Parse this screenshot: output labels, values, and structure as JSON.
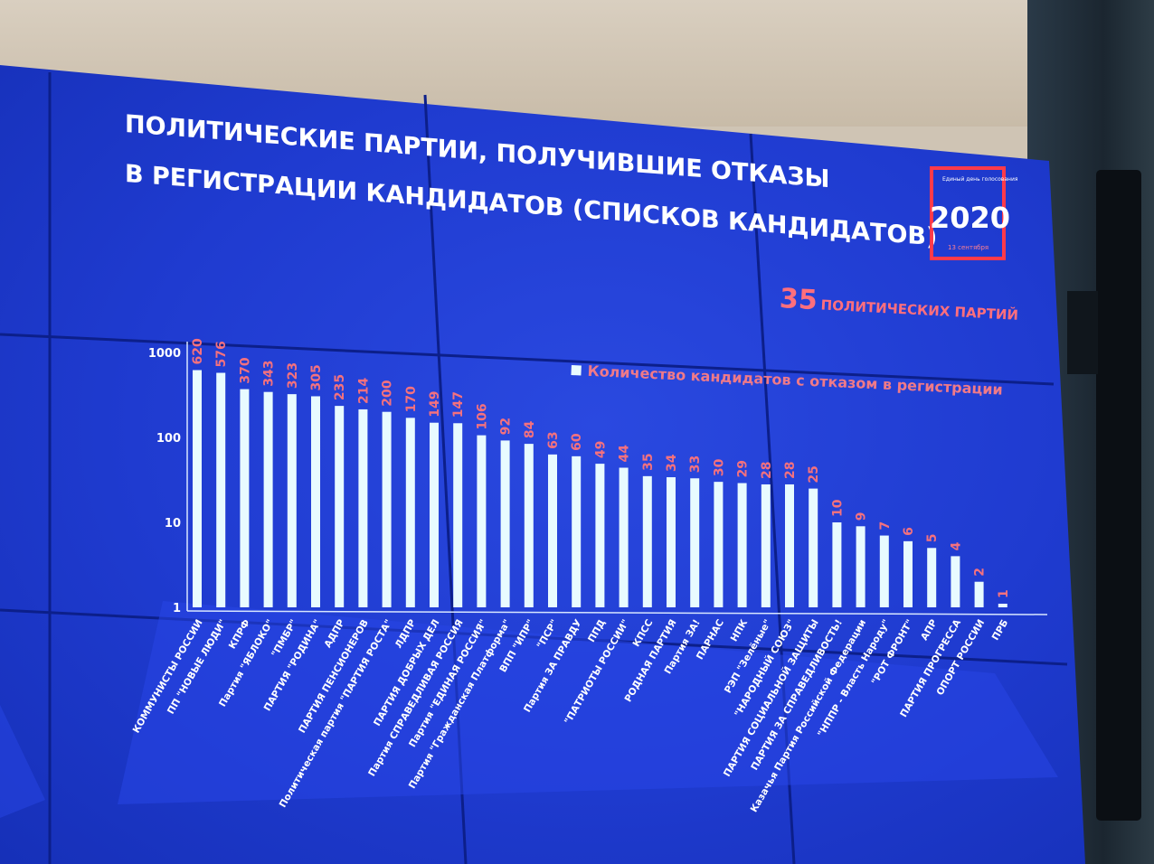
{
  "slide": {
    "title_line1": "ПОЛИТИЧЕСКИЕ ПАРТИИ, ПОЛУЧИВШИЕ ОТКАЗЫ",
    "title_line2": "В РЕГИСТРАЦИИ КАНДИДАТОВ (СПИСКОВ КАНДИДАТОВ)",
    "logo_small_text": "Единый день голосования",
    "logo_year": "2020",
    "logo_date": "13 сентября",
    "party_count_number": "35",
    "party_count_text": "ПОЛИТИЧЕСКИХ ПАРТИЙ"
  },
  "colors": {
    "screen_blue": "#1f3bd0",
    "bar_fill": "#e8fbff",
    "value_labels": "#f4717e",
    "accent_red": "#ff6f7d"
  },
  "chart_data": {
    "type": "bar",
    "yscale": "log",
    "ylim": [
      1,
      1000
    ],
    "yticks": [
      "1",
      "10",
      "100",
      "1000"
    ],
    "legend": "Количество кандидатов с отказом в регистрации",
    "legend_position": "top-right",
    "grid": false,
    "categories": [
      "КОММУНИСТЫ РОССИИ",
      "ПП \"НОВЫЕ ЛЮДИ\"",
      "КПРФ",
      "Партия \"ЯБЛОКО\"",
      "\"ПМБР\"",
      "ПАРТИЯ \"РОДИНА\"",
      "АДПР",
      "ПАРТИЯ ПЕНСИОНЕРОВ",
      "Политическая партия \"ПАРТИЯ РОСТА\"",
      "ЛДПР",
      "ПАРТИЯ ДОБРЫХ ДЕЛ",
      "Партия СПРАВЕДЛИВАЯ РОССИЯ",
      "Партия \"ЕДИНАЯ РОССИЯ\"",
      "Партия \"Гражданская Платформа\"",
      "ВПП \"ИПР\"",
      "\"ПСР\"",
      "Партия ЗА ПРАВДУ",
      "ППД",
      "\"ПАТРИОТЫ РОССИИ\"",
      "КПСС",
      "РОДНАЯ ПАРТИЯ",
      "Партия ЗА!",
      "ПАРНАС",
      "НПК",
      "РЭП \"Зелёные\"",
      "\"НАРОДНЫЙ СОЮЗ\"",
      "ПАРТИЯ СОЦИАЛЬНОЙ ЗАЩИТЫ",
      "ПАРТИЯ ЗА СПРАВЕДЛИВОСТЬ!",
      "Казачья Партия Российской Федерации",
      "\"НППР - Власть Народу\"",
      "\"РОТ ФРОНТ\"",
      "АПР",
      "ПАРТИЯ ПРОГРЕССА",
      "ОПОРТ РОССИИ",
      "ПРБ"
    ],
    "values": [
      620,
      576,
      370,
      343,
      323,
      305,
      235,
      214,
      200,
      170,
      149,
      147,
      106,
      92,
      84,
      63,
      60,
      49,
      44,
      35,
      34,
      33,
      30,
      29,
      28,
      28,
      25,
      10,
      9,
      7,
      6,
      5,
      4,
      2,
      1
    ]
  }
}
